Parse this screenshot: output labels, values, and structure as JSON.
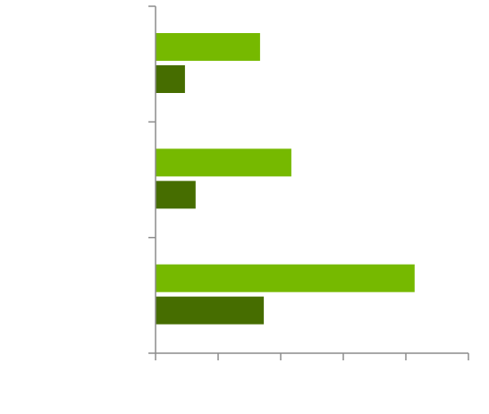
{
  "chart_data": {
    "type": "bar",
    "orientation": "horizontal",
    "categories": [
      null,
      null,
      null
    ],
    "series": [
      {
        "color": "#76b900",
        "values": [
          1.67,
          2.17,
          4.14
        ]
      },
      {
        "color": "#466d00",
        "values": [
          0.47,
          0.64,
          1.73
        ]
      }
    ],
    "xlim": [
      0,
      5
    ],
    "xticks": [
      0,
      1,
      2,
      3,
      4,
      5
    ]
  }
}
